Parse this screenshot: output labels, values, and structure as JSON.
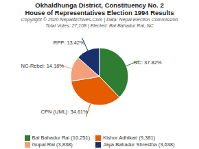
{
  "chart_data": {
    "type": "pie",
    "title": "Okhaldhunga District, Constituency No. 2",
    "subtitle": "House of Representatives Election 1994 Results",
    "annotations": [
      "Copyright © 2020 NepalArchives.Com | Data: Nepal Election Commission",
      "Total Votes: 27,108 | Elected: Bal Bahadur Rai, NC"
    ],
    "categories": [
      "Bal Bahadur Rai (10,251)",
      "Kishor Adhikari (9,381)",
      "Gopal Rai (3,838)",
      "Jaya Bahadur Shrestha (3,638)"
    ],
    "values": [
      37.82,
      34.61,
      14.16,
      13.42
    ],
    "value_labels": [
      "NC: 37.82%",
      "CPN (UML): 34.61%",
      "NC-Rebel: 14.16%",
      "RPP: 13.42%"
    ],
    "colors": [
      "#2e7d32",
      "#e65c00",
      "#f4a07a",
      "#1a2f6e"
    ],
    "legend": "bottom",
    "data_labels": true
  }
}
